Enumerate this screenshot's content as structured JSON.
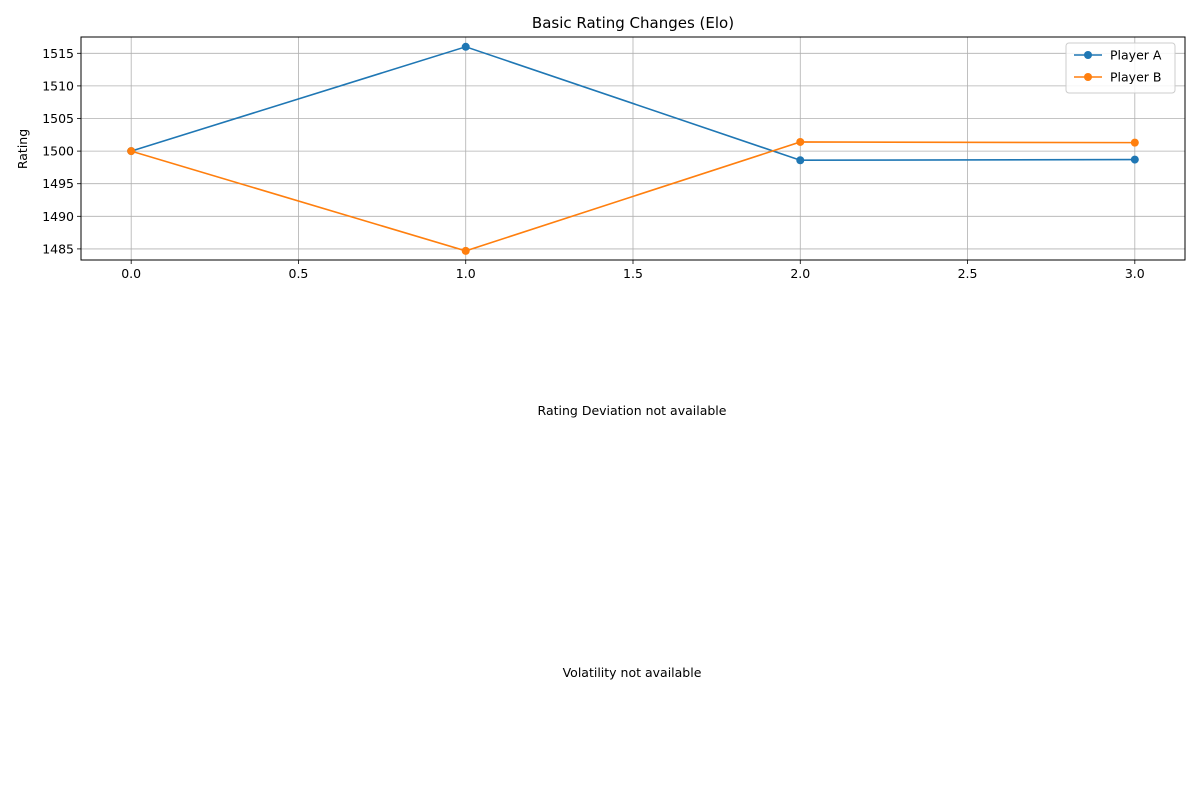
{
  "chart_data": {
    "type": "line",
    "title": "Basic Rating Changes (Elo)",
    "xlabel": "",
    "ylabel": "Rating",
    "xlim": [
      -0.15,
      3.15
    ],
    "ylim": [
      1483.3,
      1517.5
    ],
    "xticks": [
      "0.0",
      "0.5",
      "1.0",
      "1.5",
      "2.0",
      "2.5",
      "3.0"
    ],
    "xtick_values": [
      0,
      0.5,
      1,
      1.5,
      2,
      2.5,
      3
    ],
    "yticks": [
      "1485",
      "1490",
      "1495",
      "1500",
      "1505",
      "1510",
      "1515"
    ],
    "ytick_values": [
      1485,
      1490,
      1495,
      1500,
      1505,
      1510,
      1515
    ],
    "grid": true,
    "legend_position": "top-right",
    "x": [
      0,
      1,
      2,
      3
    ],
    "series": [
      {
        "name": "Player A",
        "values": [
          1500.0,
          1516.0,
          1498.6,
          1498.7
        ],
        "color": "#1f77b4"
      },
      {
        "name": "Player B",
        "values": [
          1500.0,
          1484.7,
          1501.4,
          1501.3
        ],
        "color": "#ff7f0e"
      }
    ]
  },
  "panels": {
    "deviation_message": "Rating Deviation not available",
    "volatility_message": "Volatility not available"
  }
}
